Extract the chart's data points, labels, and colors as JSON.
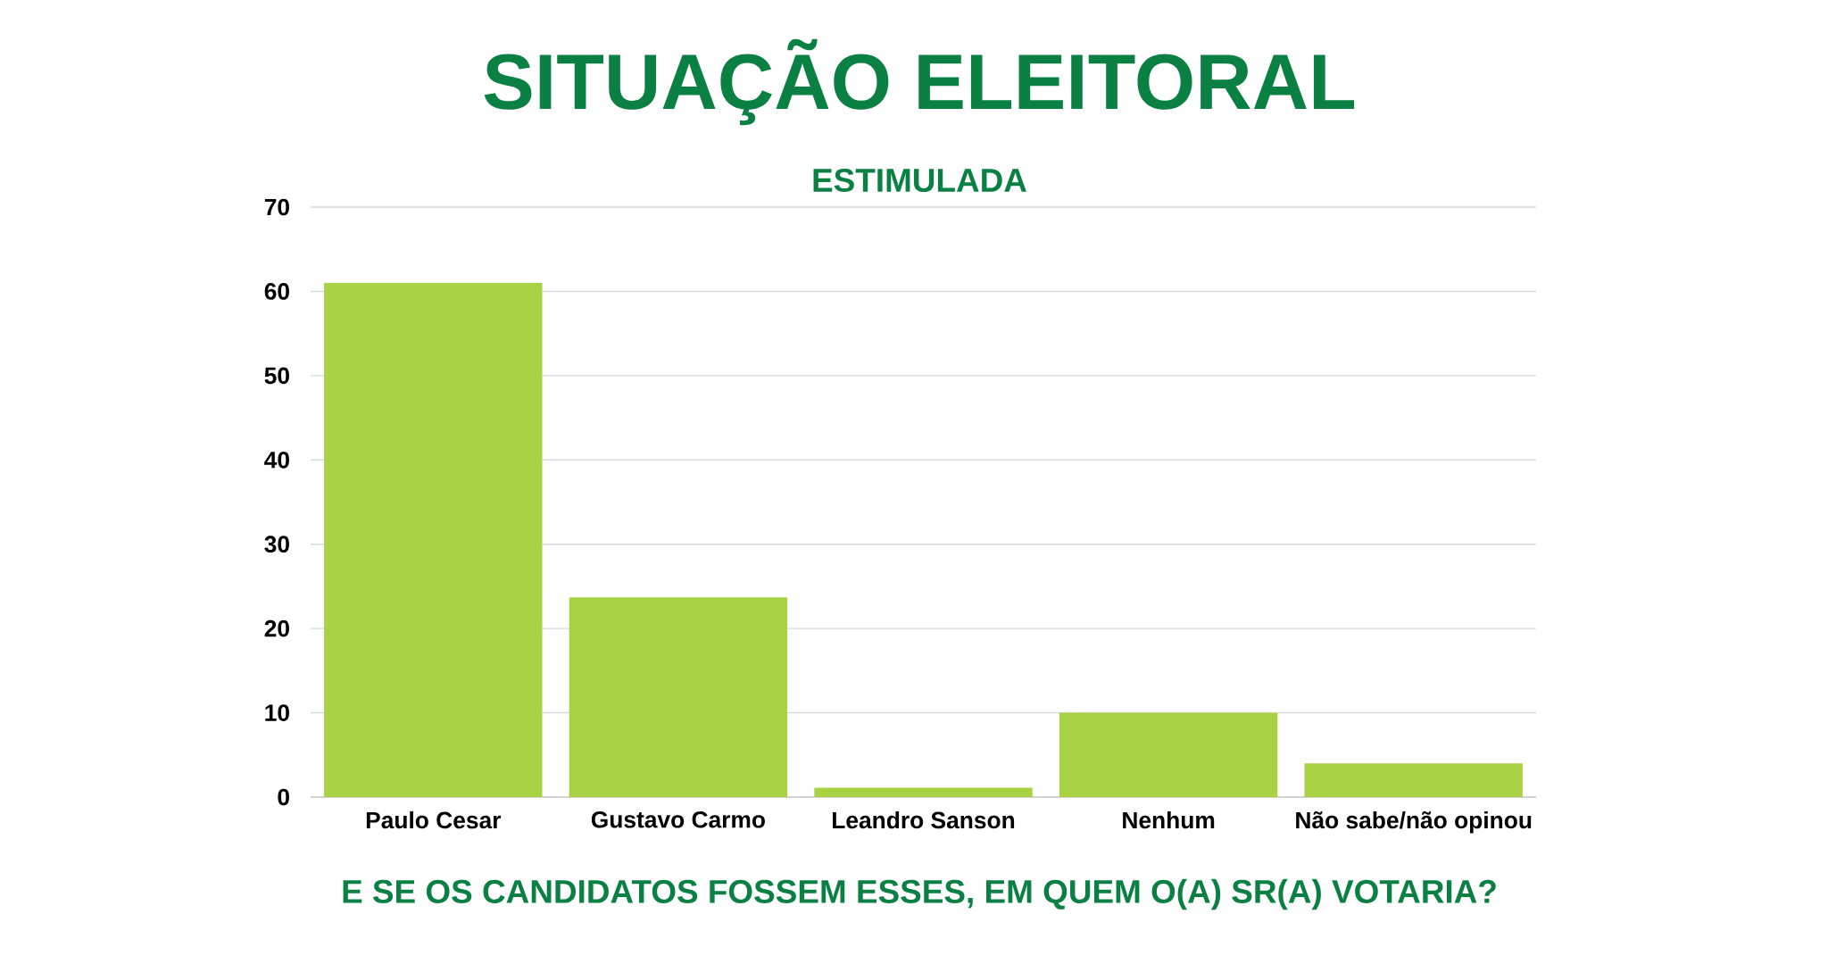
{
  "chart_data": {
    "type": "bar",
    "title": "SITUAÇÃO ELEITORAL",
    "subtitle": "ESTIMULADA",
    "annotations": [
      "E SE OS CANDIDATOS FOSSEM ESSES, EM QUEM O(A) SR(A) VOTARIA?"
    ],
    "categories": [
      "Paulo Cesar",
      "Gustavo Carmo",
      "Leandro Sanson",
      "Nenhum",
      "Não sabe/não opinou"
    ],
    "values": [
      61,
      23.7,
      1.1,
      10,
      4
    ],
    "color": "#a9d144",
    "ylim": [
      0,
      70
    ],
    "yticks": [
      0,
      10,
      20,
      30,
      40,
      50,
      60,
      70
    ],
    "grid": "y"
  }
}
